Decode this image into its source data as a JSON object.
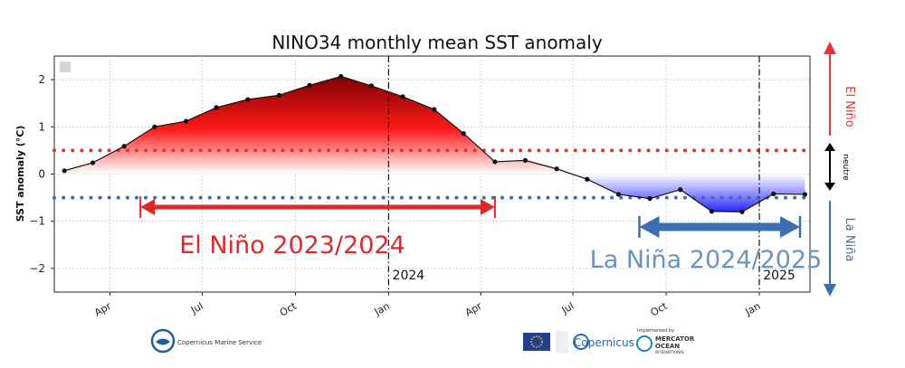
{
  "chart_data": {
    "type": "area",
    "title": "NINO34 monthly mean SST anomaly",
    "ylabel": "SST anomaly (°C)",
    "xlabel": "",
    "ylim": [
      -2.5,
      2.5
    ],
    "yticks": [
      2,
      1,
      0,
      -1,
      -2
    ],
    "ytick_labels": [
      "2",
      "1",
      "0",
      "−1",
      "−2"
    ],
    "xlim": [
      "2023-02-05",
      "2025-02-20"
    ],
    "xticks": [
      {
        "date": "2023-04-01",
        "label": "Apr"
      },
      {
        "date": "2023-07-01",
        "label": "Jul"
      },
      {
        "date": "2023-10-01",
        "label": "Oct"
      },
      {
        "date": "2024-01-01",
        "label": "Jan"
      },
      {
        "date": "2024-04-01",
        "label": "Apr"
      },
      {
        "date": "2024-07-01",
        "label": "Jul"
      },
      {
        "date": "2024-10-01",
        "label": "Oct"
      },
      {
        "date": "2025-01-01",
        "label": "Jan"
      }
    ],
    "grid": true,
    "series": [
      {
        "x": [
          "2023-02-15",
          "2023-03-15",
          "2023-04-15",
          "2023-05-15",
          "2023-06-15",
          "2023-07-15",
          "2023-08-15",
          "2023-09-15",
          "2023-10-15",
          "2023-11-15",
          "2023-12-15",
          "2024-01-15",
          "2024-02-15",
          "2024-03-15",
          "2024-04-15",
          "2024-05-15",
          "2024-06-15",
          "2024-07-15",
          "2024-08-15",
          "2024-09-15",
          "2024-10-15",
          "2024-11-15",
          "2024-12-15",
          "2025-01-15",
          "2025-02-15"
        ],
        "y": [
          0.07,
          0.24,
          0.59,
          1.0,
          1.12,
          1.41,
          1.58,
          1.67,
          1.88,
          2.07,
          1.87,
          1.64,
          1.37,
          0.86,
          0.26,
          0.29,
          0.11,
          -0.11,
          -0.43,
          -0.52,
          -0.33,
          -0.79,
          -0.8,
          -0.42,
          -0.43
        ]
      }
    ],
    "thresholds": [
      {
        "value": 0.5,
        "color": "#e33333",
        "style": "dotted"
      },
      {
        "value": -0.5,
        "color": "#3c6fb0",
        "style": "dotted"
      }
    ],
    "vlines": [
      {
        "date": "2024-01-01",
        "label": "2024"
      },
      {
        "date": "2025-01-01",
        "label": "2025"
      }
    ],
    "annotations": [
      {
        "text": "El Niño 2023/2024",
        "from": "2023-05-01",
        "to": "2024-04-15",
        "color": "#e02828"
      },
      {
        "text": "La Niña 2024/2025",
        "from": "2024-09-01",
        "to": "2025-02-20",
        "color": "#3c6fb0"
      }
    ]
  },
  "side_indicator": {
    "top_label": "El Niño",
    "middle_label": "neutre",
    "bottom_label": "La Niña",
    "top_color": "#e33333",
    "middle_color": "#000000",
    "bottom_color": "#3c6fb0"
  },
  "footer": {
    "cms_logo_text": "Copernicus Marine Service",
    "copernicus_text": "Copernicus",
    "implemented_by": "Implemented by",
    "mercator_line1": "MERCATOR",
    "mercator_line2": "OCEAN",
    "mercator_line3": "INTERNATIONAL"
  }
}
